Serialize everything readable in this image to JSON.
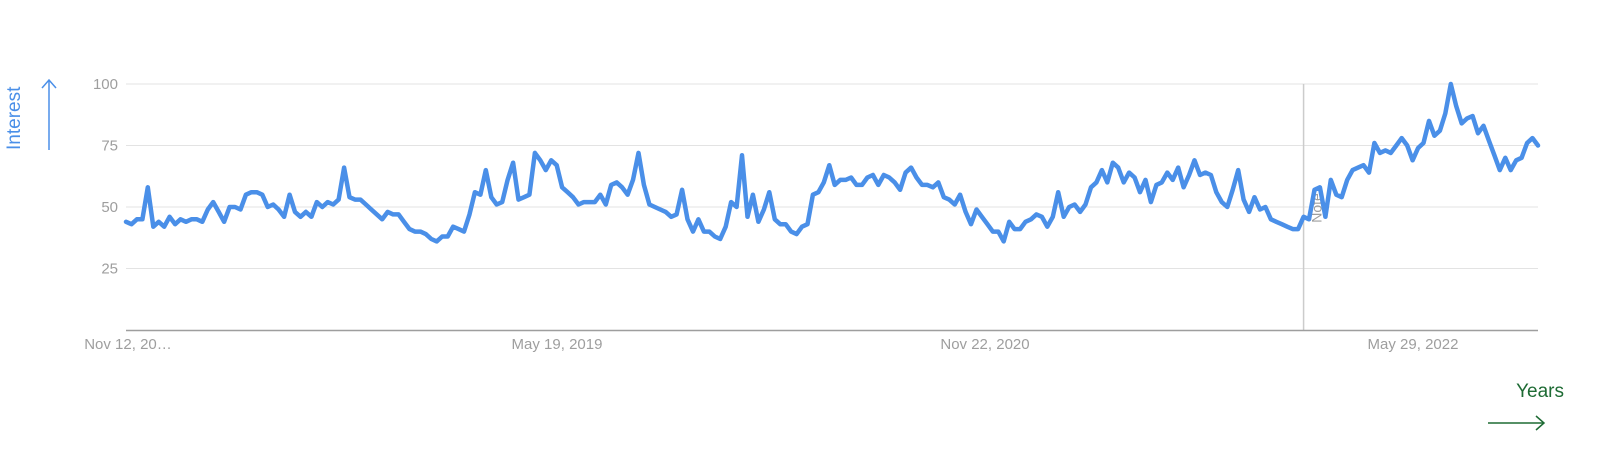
{
  "axis": {
    "y_label": "Interest",
    "x_label": "Years",
    "y_color": "#4a8fe8",
    "x_color": "#1e6b34"
  },
  "chart_data": {
    "type": "line",
    "y_ticks": [
      25,
      50,
      75,
      100
    ],
    "x_tick_labels": [
      "Nov 12, 20…",
      "May 19, 2019",
      "Nov 22, 2020",
      "May 29, 2022"
    ],
    "ylim": [
      0,
      100
    ],
    "grid": true,
    "line_color": "#4a8fe8",
    "annotation": {
      "label": "Note",
      "index": 216
    },
    "series": [
      {
        "values": [
          44,
          43,
          45,
          45,
          58,
          42,
          44,
          42,
          46,
          43,
          45,
          44,
          45,
          45,
          44,
          49,
          52,
          48,
          44,
          50,
          50,
          49,
          55,
          56,
          56,
          55,
          50,
          51,
          49,
          46,
          55,
          48,
          46,
          48,
          46,
          52,
          50,
          52,
          51,
          53,
          66,
          54,
          53,
          53,
          51,
          49,
          47,
          45,
          48,
          47,
          47,
          44,
          41,
          40,
          40,
          39,
          37,
          36,
          38,
          38,
          42,
          41,
          40,
          47,
          56,
          55,
          65,
          54,
          51,
          52,
          61,
          68,
          53,
          54,
          55,
          72,
          69,
          65,
          69,
          67,
          58,
          56,
          54,
          51,
          52,
          52,
          52,
          55,
          51,
          59,
          60,
          58,
          55,
          61,
          72,
          59,
          51,
          50,
          49,
          48,
          46,
          47,
          57,
          45,
          40,
          45,
          40,
          40,
          38,
          37,
          42,
          52,
          50,
          71,
          46,
          55,
          44,
          49,
          56,
          45,
          43,
          43,
          40,
          39,
          42,
          43,
          55,
          56,
          60,
          67,
          59,
          61,
          61,
          62,
          59,
          59,
          62,
          63,
          59,
          63,
          62,
          60,
          57,
          64,
          66,
          62,
          59,
          59,
          58,
          60,
          54,
          53,
          51,
          55,
          48,
          43,
          49,
          46,
          43,
          40,
          40,
          36,
          44,
          41,
          41,
          44,
          45,
          47,
          46,
          42,
          46,
          56,
          46,
          50,
          51,
          48,
          51,
          58,
          60,
          65,
          60,
          68,
          66,
          60,
          64,
          62,
          56,
          61,
          52,
          59,
          60,
          64,
          61,
          66,
          58,
          63,
          69,
          63,
          64,
          63,
          56,
          52,
          50,
          57,
          65,
          53,
          48,
          54,
          49,
          50,
          45,
          44,
          43,
          42,
          41,
          41,
          46,
          45,
          57,
          58,
          46,
          61,
          55,
          54,
          61,
          65,
          66,
          67,
          64,
          76,
          72,
          73,
          72,
          75,
          78,
          75,
          69,
          74,
          76,
          85,
          79,
          81,
          88,
          100,
          91,
          84,
          86,
          87,
          80,
          83,
          77,
          71,
          65,
          70,
          65,
          69,
          70,
          76,
          78,
          75
        ]
      }
    ]
  }
}
